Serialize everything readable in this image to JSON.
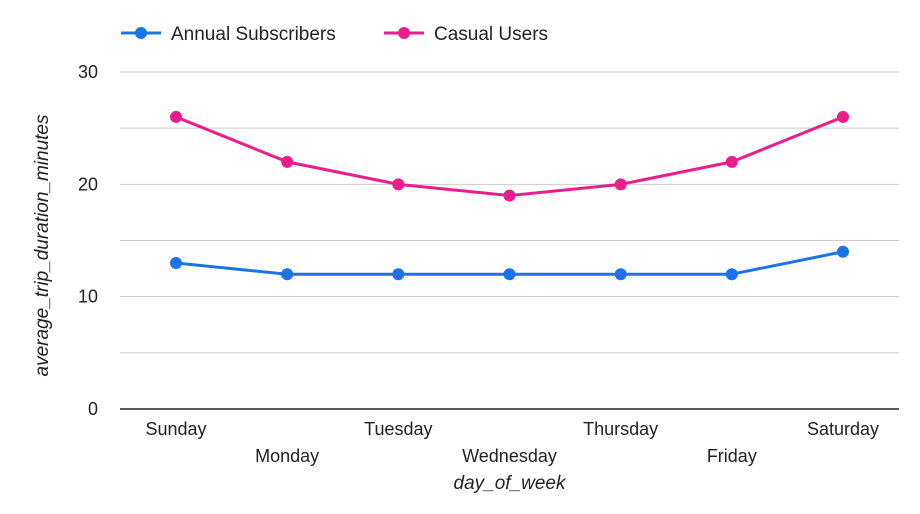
{
  "chart_data": {
    "type": "line",
    "title": "",
    "xlabel": "day_of_week",
    "ylabel": "average_trip_duration_minutes",
    "categories": [
      "Sunday",
      "Monday",
      "Tuesday",
      "Wednesday",
      "Thursday",
      "Friday",
      "Saturday"
    ],
    "ylim": [
      0,
      30
    ],
    "yticks": [
      "0",
      "10",
      "20",
      "30"
    ],
    "grid": true,
    "legend_position": "top-left",
    "series": [
      {
        "name": "Annual Subscribers",
        "color": "#1a73e8",
        "values": [
          13,
          12,
          12,
          12,
          12,
          12,
          14
        ]
      },
      {
        "name": "Casual Users",
        "color": "#e91e8c",
        "values": [
          26,
          22,
          20,
          19,
          20,
          22,
          26
        ]
      }
    ]
  }
}
